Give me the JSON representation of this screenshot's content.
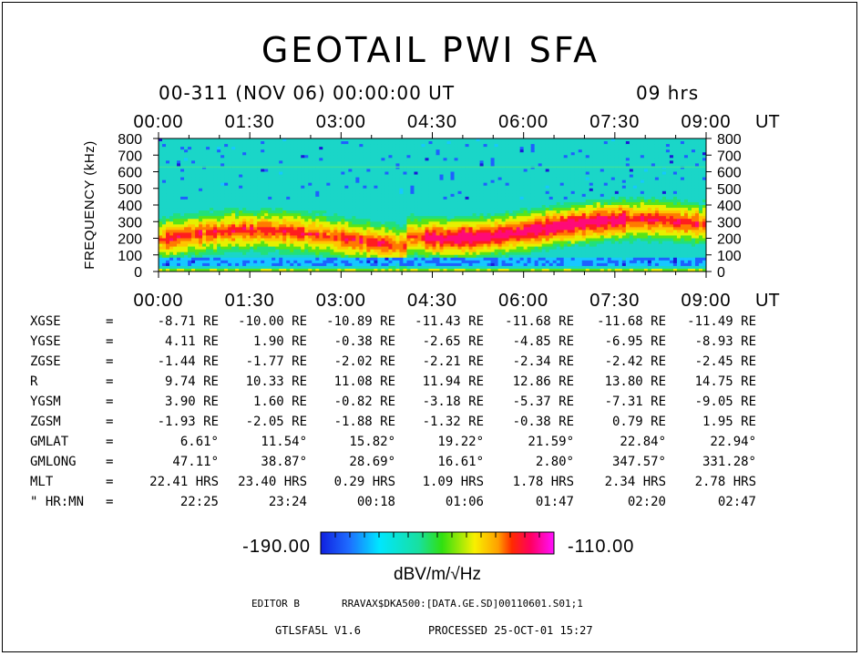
{
  "title": "GEOTAIL PWI SFA",
  "header": {
    "date_line": "00-311 (NOV 06) 00:00:00 UT",
    "duration": "09 hrs"
  },
  "chart_data": {
    "type": "heatmap",
    "ylabel": "FREQUENCY (kHz)",
    "ylim": [
      0,
      800
    ],
    "yticks": [
      "0",
      "100",
      "200",
      "300",
      "400",
      "500",
      "600",
      "700",
      "800"
    ],
    "xticks": [
      "00:00",
      "01:30",
      "03:00",
      "04:30",
      "06:00",
      "07:30",
      "09:00"
    ],
    "x_unit": "UT",
    "colorbar": {
      "min": "-190.00",
      "max": "-110.00",
      "label": "dBV/m/√Hz"
    }
  },
  "ephemeris": {
    "rows": [
      {
        "label": "XGSE",
        "eq": "=",
        "values": [
          "-8.71 RE",
          "-10.00 RE",
          "-10.89 RE",
          "-11.43 RE",
          "-11.68 RE",
          "-11.68 RE",
          "-11.49 RE"
        ]
      },
      {
        "label": "YGSE",
        "eq": "=",
        "values": [
          "4.11 RE",
          "1.90 RE",
          "-0.38 RE",
          "-2.65 RE",
          "-4.85 RE",
          "-6.95 RE",
          "-8.93 RE"
        ]
      },
      {
        "label": "ZGSE",
        "eq": "=",
        "values": [
          "-1.44 RE",
          "-1.77 RE",
          "-2.02 RE",
          "-2.21 RE",
          "-2.34 RE",
          "-2.42 RE",
          "-2.45 RE"
        ]
      },
      {
        "label": "R",
        "eq": "=",
        "values": [
          "9.74 RE",
          "10.33 RE",
          "11.08 RE",
          "11.94 RE",
          "12.86 RE",
          "13.80 RE",
          "14.75 RE"
        ]
      },
      {
        "label": "YGSM",
        "eq": "=",
        "values": [
          "3.90 RE",
          "1.60 RE",
          "-0.82 RE",
          "-3.18 RE",
          "-5.37 RE",
          "-7.31 RE",
          "-9.05 RE"
        ]
      },
      {
        "label": "ZGSM",
        "eq": "=",
        "values": [
          "-1.93 RE",
          "-2.05 RE",
          "-1.88 RE",
          "-1.32 RE",
          "-0.38 RE",
          "0.79 RE",
          "1.95 RE"
        ]
      },
      {
        "label": "GMLAT",
        "eq": "=",
        "values": [
          "6.61°",
          "11.54°",
          "15.82°",
          "19.22°",
          "21.59°",
          "22.84°",
          "22.94°"
        ]
      },
      {
        "label": "GMLONG",
        "eq": "=",
        "values": [
          "47.11°",
          "38.87°",
          "28.69°",
          "16.61°",
          "2.80°",
          "347.57°",
          "331.28°"
        ]
      },
      {
        "label": "MLT",
        "eq": "=",
        "values": [
          "22.41 HRS",
          "23.40 HRS",
          "0.29 HRS",
          "1.09 HRS",
          "1.78 HRS",
          "2.34 HRS",
          "2.78 HRS"
        ]
      },
      {
        "label": "\" HR:MN",
        "eq": "=",
        "values": [
          "22:25",
          "23:24",
          "00:18",
          "01:06",
          "01:47",
          "02:20",
          "02:47"
        ]
      }
    ]
  },
  "footer": {
    "editor": "EDITOR B",
    "file": "RRAVAX$DKA500:[DATA.GE.SD]00110601.S01;1",
    "version": "GTLSFA5L V1.6",
    "processed": "PROCESSED 25-OCT-01 15:27"
  },
  "colors": {
    "background": "#ffffff",
    "text": "#000000",
    "spectrogram_base": "#19d2c8"
  }
}
